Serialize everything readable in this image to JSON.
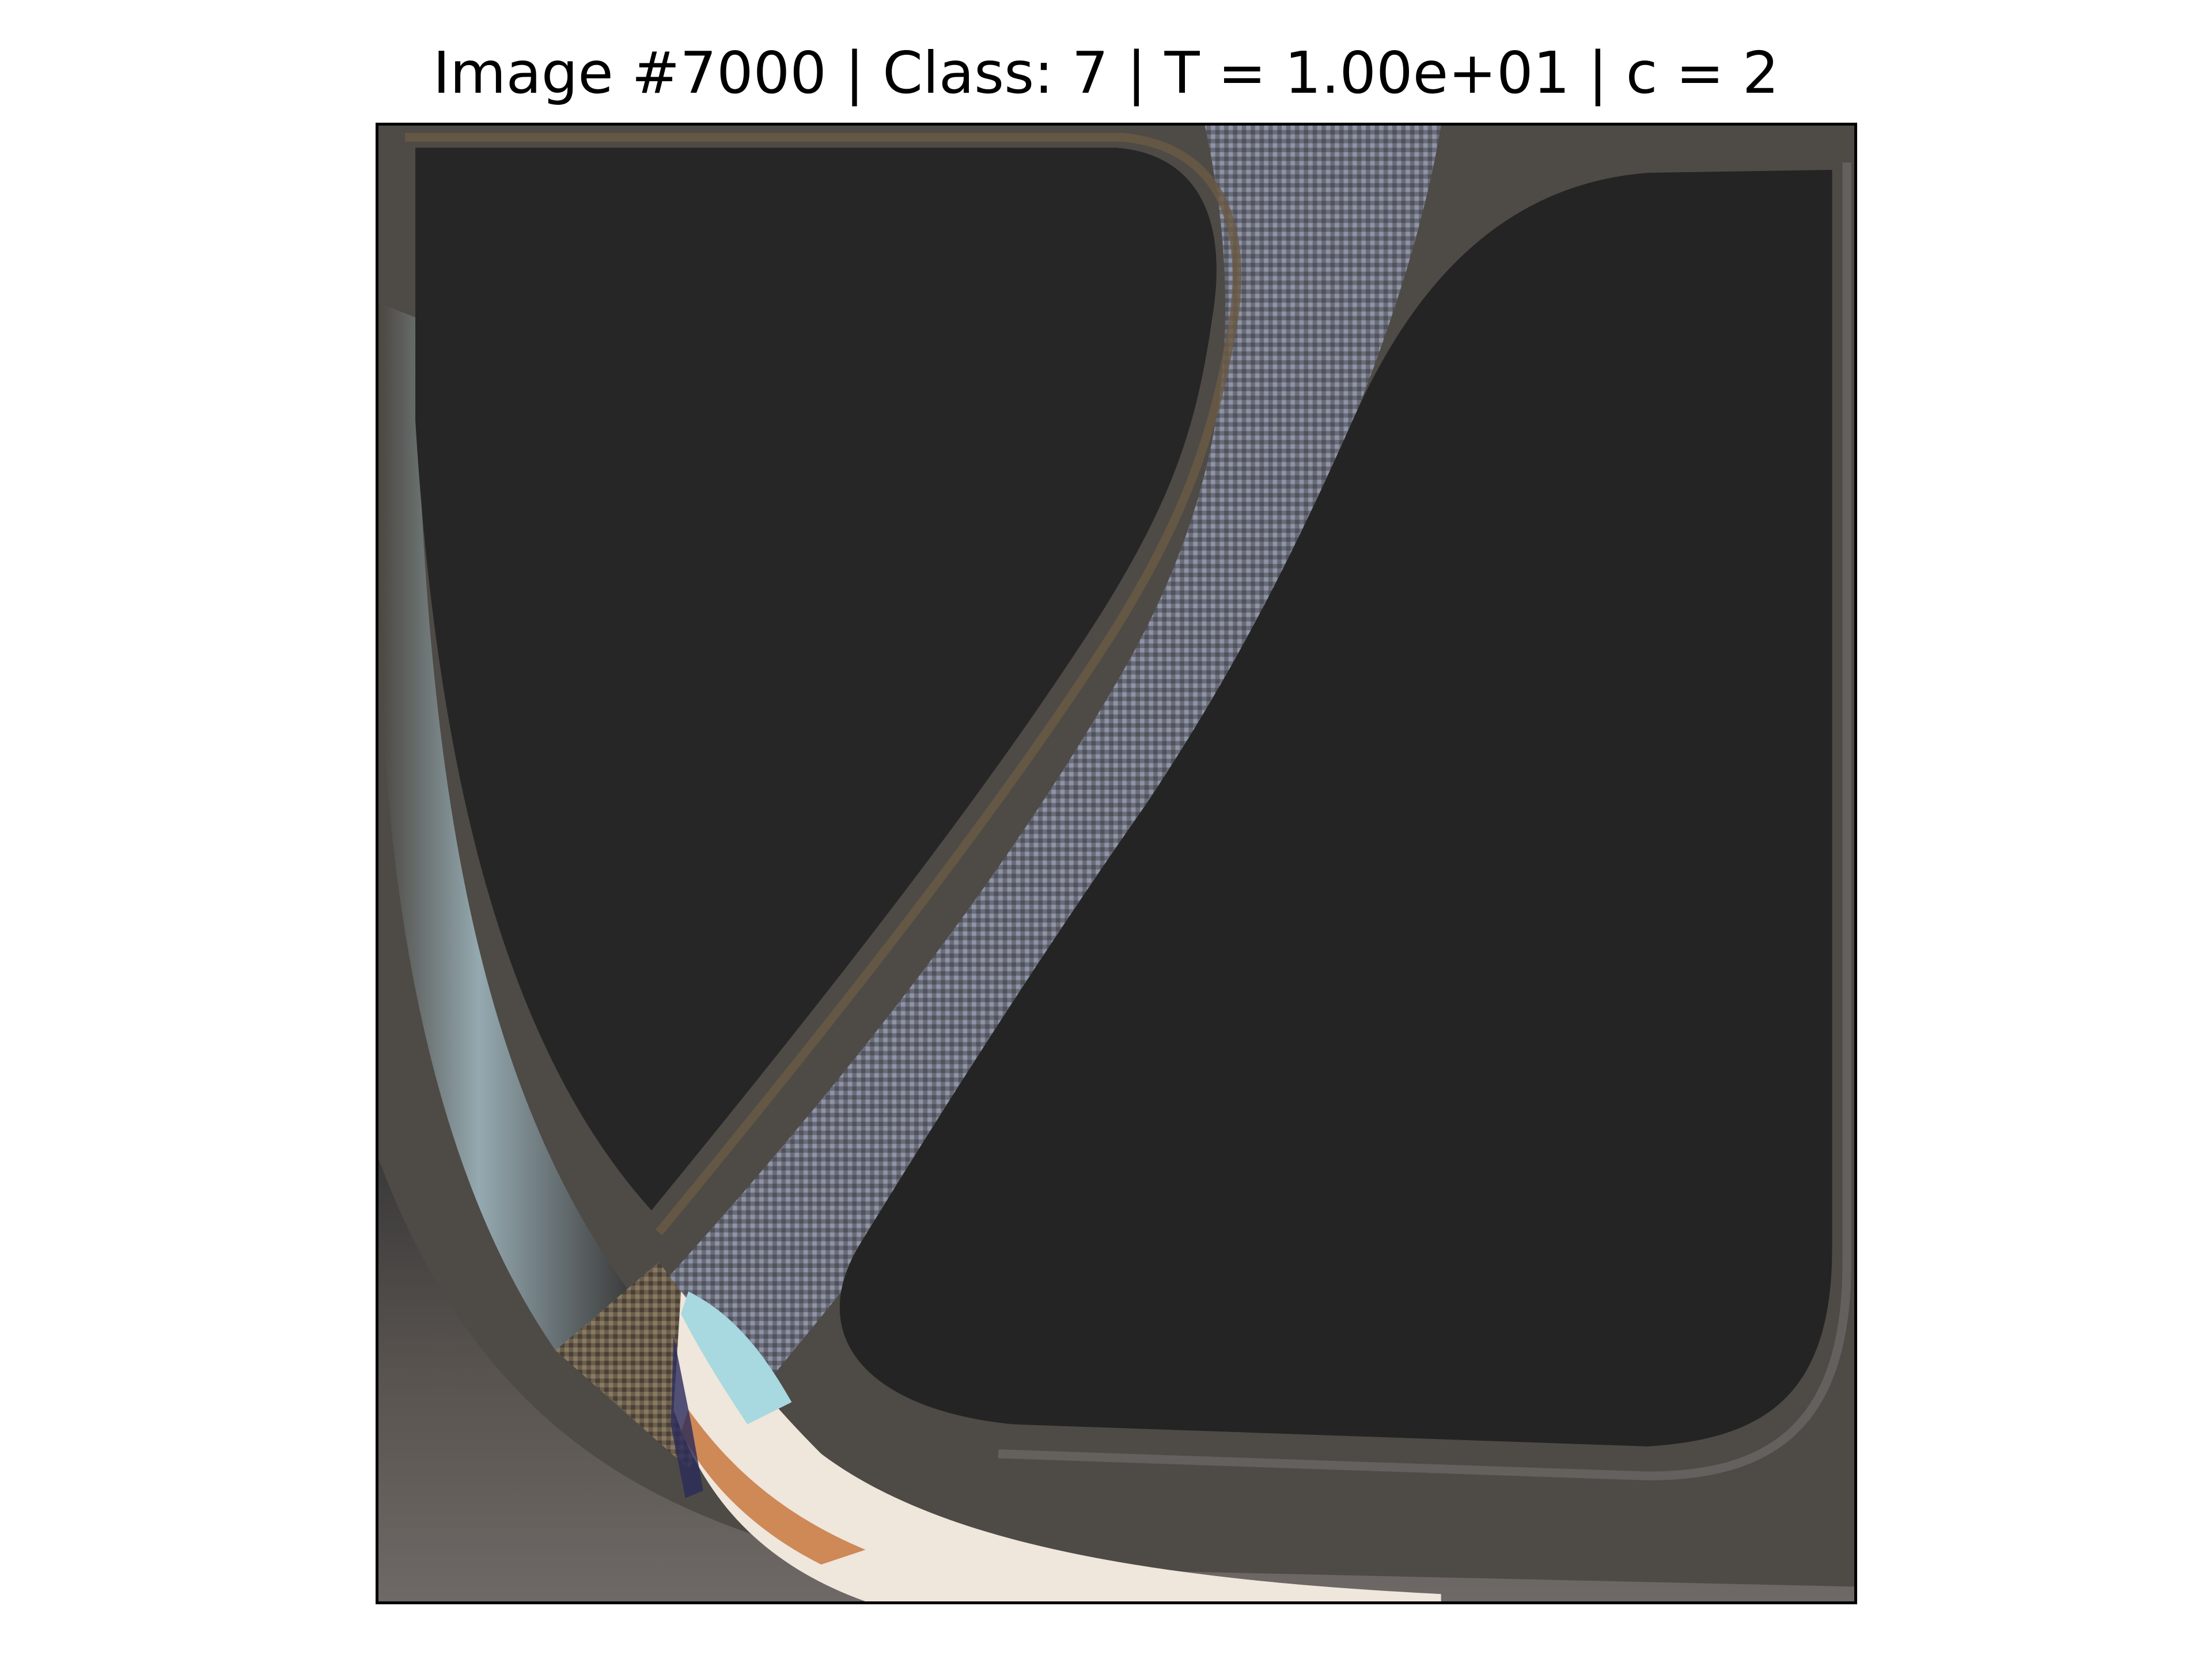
{
  "figure": {
    "title": "Image #7000 | Class: 7 | T = 1.00e+01 | c = 2"
  },
  "image": {
    "subject": "abstract-distorted-pattern",
    "colors": {
      "background_dark": "#262626",
      "band_gray": "#5a5c66",
      "band_blue_gray": "#8a92a8",
      "edge_brown": "#5a4a3a",
      "highlight_cyan": "#a8d8e0",
      "highlight_white": "#f4ece4",
      "highlight_orange": "#c87840",
      "frame": "#000000"
    }
  }
}
